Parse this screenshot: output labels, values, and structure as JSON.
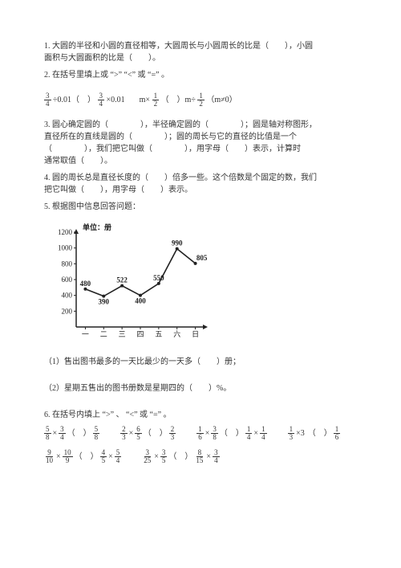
{
  "q1": {
    "text_a": "1. 大圆的半径和小圆的直径相等，大圆周长与小圆周长的比是（　　），小圆",
    "text_b": "面积与大圆面积的比是（　　）。"
  },
  "q2": {
    "intro": "2. 在括号里填上或 “>” “<” 或 “=” 。",
    "e1a": "3",
    "e1b": "4",
    "e1op": "÷0.01（　）",
    "e2a": "3",
    "e2b": "4",
    "e2op": "×0.01",
    "e3l": "m×",
    "e3a": "1",
    "e3b": "2",
    "e3mid": "（　）m÷",
    "e3c": "1",
    "e3d": "2",
    "e3r": "（m≠0）"
  },
  "q3": {
    "l1": "3. 圆心确定圆的（　　　　），半径确定圆的（　　　　）；圆是轴对称图形，",
    "l2": "直径所在的直线是圆的（　　　　）；圆的周长与它的直径的比值是一个",
    "l3": "（　　　　），我们把它叫做（　　　　），用字母（　　）表示，计算时",
    "l4": "通常取值（　　）。"
  },
  "q4": {
    "l1": "4. 圆的周长总是直径长度的（　　）倍多一些。这个倍数是个固定的数，我们",
    "l2": "把它叫做（　　），用字母（　　）表示。"
  },
  "q5": {
    "intro": "5. 根据图中信息回答问题：",
    "ylabel": "单位：册",
    "yticks": [
      "1200",
      "1000",
      "800",
      "600",
      "400",
      "200"
    ],
    "xlabels": [
      "一",
      "二",
      "三",
      "四",
      "五",
      "六",
      "日"
    ],
    "values": [
      480,
      390,
      522,
      400,
      550,
      990,
      805
    ],
    "value_labels": [
      "480",
      "390",
      "522",
      "400",
      "550",
      "990",
      "805"
    ],
    "sub1": "（1）售出图书最多的一天比最少的一天多（　　）册；",
    "sub2": "（2）星期五售出的图书册数是星期四的（　　）%。"
  },
  "q6": {
    "intro": "6. 在括号内填上 “>” 、 “<” 或 “=” 。",
    "items": [
      {
        "a": [
          "5",
          "8"
        ],
        "op1": "×",
        "b": [
          "3",
          "4"
        ],
        "mid": "（　）",
        "c": [
          "5",
          "8"
        ]
      },
      {
        "a": [
          "2",
          "3"
        ],
        "op1": "×",
        "b": [
          "6",
          "5"
        ],
        "mid": "（　）",
        "c": [
          "2",
          "3"
        ]
      },
      {
        "a": [
          "1",
          "6"
        ],
        "op1": "×",
        "b": [
          "3",
          "8"
        ],
        "mid": "（　）",
        "c": [
          "1",
          "4"
        ],
        "op2": "×",
        "d": [
          "1",
          "4"
        ]
      },
      {
        "a": [
          "1",
          "3"
        ],
        "op1": "×3",
        "mid": "（　）",
        "c": [
          "1",
          "6"
        ]
      },
      {
        "a": [
          "9",
          "10"
        ],
        "op1": "×",
        "b": [
          "10",
          "9"
        ],
        "mid": "（　）",
        "c": [
          "4",
          "5"
        ],
        "op2": "×",
        "d": [
          "5",
          "4"
        ]
      },
      {
        "a": [
          "3",
          "25"
        ],
        "op1": "×",
        "b": [
          "3",
          "5"
        ],
        "mid": "（　）",
        "c": [
          "8",
          "15"
        ],
        "op2": "×",
        "d": [
          "3",
          "4"
        ]
      }
    ]
  },
  "chart_style": {
    "stroke": "#222222",
    "bg": "#ffffff",
    "font_size": "9"
  }
}
